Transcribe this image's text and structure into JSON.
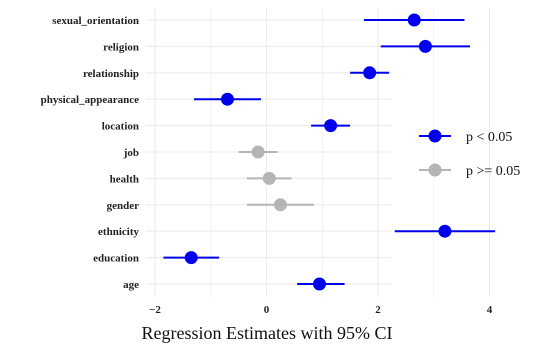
{
  "chart_data": {
    "type": "scatter",
    "title": "",
    "xlabel": "Regression Estimates with 95% CI",
    "ylabel": "",
    "xlim": [
      -2.2,
      4.4
    ],
    "xticks": [
      -2,
      0,
      2,
      4
    ],
    "xtick_labels": [
      "−2",
      "0",
      "2",
      "4"
    ],
    "grid": true,
    "legend_position": "right",
    "colors": {
      "significant": "#0000ee",
      "nonsignificant": "#b5b5b5"
    },
    "legend": [
      {
        "label": "p < 0.05",
        "color": "#0000ee"
      },
      {
        "label": "p >= 0.05",
        "color": "#b5b5b5"
      }
    ],
    "points": [
      {
        "category": "sexual_orientation",
        "estimate": 2.65,
        "ci": [
          1.75,
          3.55
        ],
        "significant": true
      },
      {
        "category": "religion",
        "estimate": 2.85,
        "ci": [
          2.05,
          3.65
        ],
        "significant": true
      },
      {
        "category": "relationship",
        "estimate": 1.85,
        "ci": [
          1.5,
          2.2
        ],
        "significant": true
      },
      {
        "category": "physical_appearance",
        "estimate": -0.7,
        "ci": [
          -1.3,
          -0.1
        ],
        "significant": true
      },
      {
        "category": "location",
        "estimate": 1.15,
        "ci": [
          0.8,
          1.5
        ],
        "significant": true
      },
      {
        "category": "job",
        "estimate": -0.15,
        "ci": [
          -0.5,
          0.2
        ],
        "significant": false
      },
      {
        "category": "health",
        "estimate": 0.05,
        "ci": [
          -0.35,
          0.45
        ],
        "significant": false
      },
      {
        "category": "gender",
        "estimate": 0.25,
        "ci": [
          -0.35,
          0.85
        ],
        "significant": false
      },
      {
        "category": "ethnicity",
        "estimate": 3.2,
        "ci": [
          2.3,
          4.1
        ],
        "significant": true
      },
      {
        "category": "education",
        "estimate": -1.35,
        "ci": [
          -1.85,
          -0.85
        ],
        "significant": true
      },
      {
        "category": "age",
        "estimate": 0.95,
        "ci": [
          0.55,
          1.4
        ],
        "significant": true
      }
    ]
  }
}
